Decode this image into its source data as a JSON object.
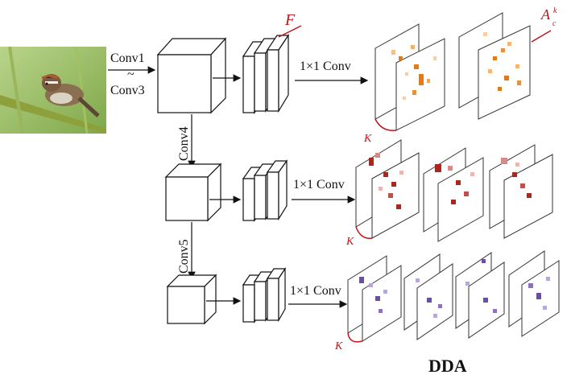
{
  "labels": {
    "conv1": "Conv1",
    "tilde": "~",
    "conv3": "Conv3",
    "conv4": "Conv4",
    "conv5": "Conv5",
    "one_by_one_1": "1×1 Conv",
    "one_by_one_2": "1×1 Conv",
    "one_by_one_3": "1×1 Conv",
    "F": "F",
    "A": "A",
    "A_sup": "k",
    "A_sub": "c",
    "K1": "K",
    "K2": "K",
    "K3": "K",
    "title": "DDA"
  },
  "colors": {
    "orange": "#e07a1f",
    "red": "#a8281e",
    "purple": "#6b4fa3",
    "accent_red": "#c0141b"
  }
}
